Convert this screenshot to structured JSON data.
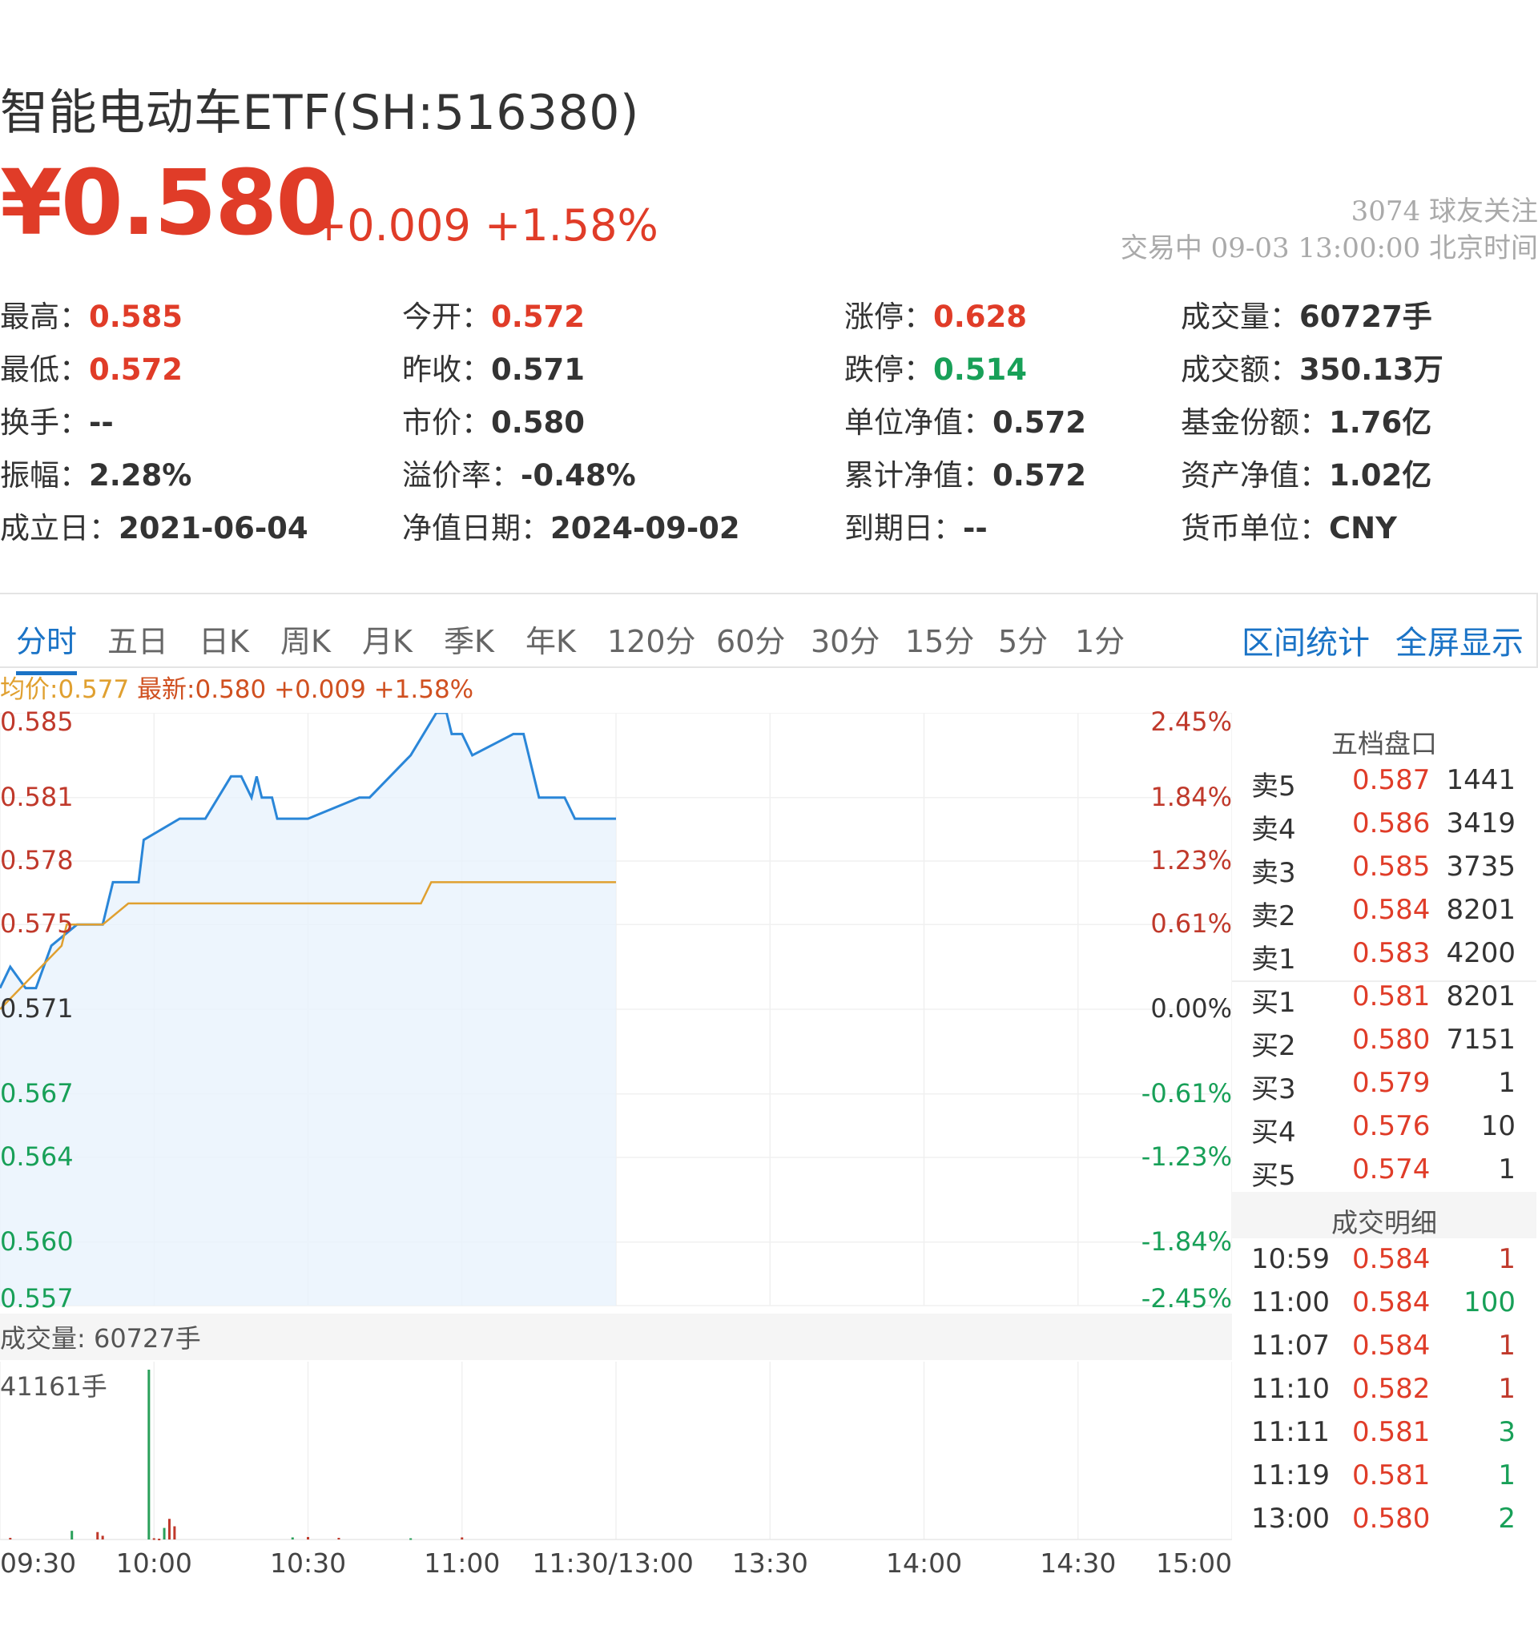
{
  "header": {
    "title": "智能电动车ETF(SH:516380)",
    "price": "¥0.580",
    "change": "+0.009 +1.58%",
    "followers": "3074 球友关注",
    "status": "交易中 09-03 13:00:00 北京时间"
  },
  "stats": [
    {
      "label": "最高：",
      "value": "0.585",
      "color": "red"
    },
    {
      "label": "今开：",
      "value": "0.572",
      "color": "red"
    },
    {
      "label": "涨停：",
      "value": "0.628",
      "color": "red"
    },
    {
      "label": "成交量：",
      "value": "60727手",
      "color": "dark"
    },
    {
      "label": "最低：",
      "value": "0.572",
      "color": "red"
    },
    {
      "label": "昨收：",
      "value": "0.571",
      "color": "dark"
    },
    {
      "label": "跌停：",
      "value": "0.514",
      "color": "green"
    },
    {
      "label": "成交额：",
      "value": "350.13万",
      "color": "dark"
    },
    {
      "label": "换手：",
      "value": "--",
      "color": "dark"
    },
    {
      "label": "市价：",
      "value": "0.580",
      "color": "dark"
    },
    {
      "label": "单位净值：",
      "value": "0.572",
      "color": "dark"
    },
    {
      "label": "基金份额：",
      "value": "1.76亿",
      "color": "dark"
    },
    {
      "label": "振幅：",
      "value": "2.28%",
      "color": "dark"
    },
    {
      "label": "溢价率：",
      "value": "-0.48%",
      "color": "dark"
    },
    {
      "label": "累计净值：",
      "value": "0.572",
      "color": "dark"
    },
    {
      "label": "资产净值：",
      "value": "1.02亿",
      "color": "dark"
    },
    {
      "label": "成立日：",
      "value": "2021-06-04",
      "color": "dark"
    },
    {
      "label": "净值日期：",
      "value": "2024-09-02",
      "color": "dark"
    },
    {
      "label": "到期日：",
      "value": "--",
      "color": "dark"
    },
    {
      "label": "货币单位：",
      "value": "CNY",
      "color": "dark"
    }
  ],
  "tabs": [
    "分时",
    "五日",
    "日K",
    "周K",
    "月K",
    "季K",
    "年K",
    "120分",
    "60分",
    "30分",
    "15分",
    "5分",
    "1分"
  ],
  "active_tab": "分时",
  "links": {
    "interval_stats": "区间统计",
    "fullscreen": "全屏显示"
  },
  "legend": {
    "avg": "均价:0.577",
    "latest": "最新:0.580 +0.009 +1.58%"
  },
  "volume": {
    "label": "成交量: 60727手",
    "max": "41161手"
  },
  "order_book": {
    "title": "五档盘口",
    "asks": [
      {
        "name": "卖5",
        "price": "0.587",
        "qty": "1441"
      },
      {
        "name": "卖4",
        "price": "0.586",
        "qty": "3419"
      },
      {
        "name": "卖3",
        "price": "0.585",
        "qty": "3735"
      },
      {
        "name": "卖2",
        "price": "0.584",
        "qty": "8201"
      },
      {
        "name": "卖1",
        "price": "0.583",
        "qty": "4200"
      }
    ],
    "bids": [
      {
        "name": "买1",
        "price": "0.581",
        "qty": "8201"
      },
      {
        "name": "买2",
        "price": "0.580",
        "qty": "7151"
      },
      {
        "name": "买3",
        "price": "0.579",
        "qty": "1"
      },
      {
        "name": "买4",
        "price": "0.576",
        "qty": "10"
      },
      {
        "name": "买5",
        "price": "0.574",
        "qty": "1"
      }
    ]
  },
  "trades": {
    "title": "成交明细",
    "rows": [
      {
        "time": "10:59",
        "price": "0.584",
        "qty": "1",
        "side": "red"
      },
      {
        "time": "11:00",
        "price": "0.584",
        "qty": "100",
        "side": "green"
      },
      {
        "time": "11:07",
        "price": "0.584",
        "qty": "1",
        "side": "red"
      },
      {
        "time": "11:10",
        "price": "0.582",
        "qty": "1",
        "side": "red"
      },
      {
        "time": "11:11",
        "price": "0.581",
        "qty": "3",
        "side": "green"
      },
      {
        "time": "11:19",
        "price": "0.581",
        "qty": "1",
        "side": "green"
      },
      {
        "time": "13:00",
        "price": "0.580",
        "qty": "2",
        "side": "green"
      }
    ]
  },
  "chart_data": {
    "type": "line",
    "y_left_ticks": [
      "0.585",
      "0.581",
      "0.578",
      "0.575",
      "0.571",
      "0.567",
      "0.564",
      "0.560",
      "0.557"
    ],
    "y_right_ticks": [
      "2.45%",
      "1.84%",
      "1.23%",
      "0.61%",
      "0.00%",
      "-0.61%",
      "-1.23%",
      "-1.84%",
      "-2.45%"
    ],
    "x_ticks": [
      "09:30",
      "10:00",
      "10:30",
      "11:00",
      "11:30/13:00",
      "13:30",
      "14:00",
      "14:30",
      "15:00"
    ],
    "ylim": [
      0.557,
      0.585
    ],
    "prev_close": 0.571,
    "series": [
      {
        "name": "最新",
        "color": "#2a86d8",
        "x_minutes": [
          0,
          2,
          5,
          7,
          10,
          15,
          20,
          22,
          27,
          28,
          35,
          40,
          45,
          47,
          49,
          50,
          51,
          52,
          53,
          54,
          60,
          70,
          72,
          80,
          85,
          87,
          88,
          90,
          92,
          100,
          102,
          105,
          110,
          112,
          120
        ],
        "values": [
          0.572,
          0.573,
          0.572,
          0.572,
          0.574,
          0.575,
          0.575,
          0.577,
          0.577,
          0.579,
          0.58,
          0.58,
          0.582,
          0.582,
          0.581,
          0.582,
          0.581,
          0.581,
          0.581,
          0.58,
          0.58,
          0.581,
          0.581,
          0.583,
          0.585,
          0.585,
          0.584,
          0.584,
          0.583,
          0.584,
          0.584,
          0.581,
          0.581,
          0.58,
          0.58
        ]
      },
      {
        "name": "均价",
        "color": "#e0a030",
        "x_minutes": [
          0,
          12,
          13,
          20,
          25,
          82,
          84,
          120
        ],
        "values": [
          0.571,
          0.574,
          0.575,
          0.575,
          0.576,
          0.576,
          0.577,
          0.577
        ]
      }
    ],
    "volume_series": {
      "x_minutes": [
        2,
        14,
        19,
        20,
        29,
        30,
        31,
        32,
        33,
        34,
        57,
        60,
        66,
        80,
        90
      ],
      "values": [
        400,
        2100,
        1800,
        900,
        41161,
        300,
        200,
        2800,
        5000,
        3200,
        500,
        600,
        400,
        300,
        500
      ]
    }
  }
}
